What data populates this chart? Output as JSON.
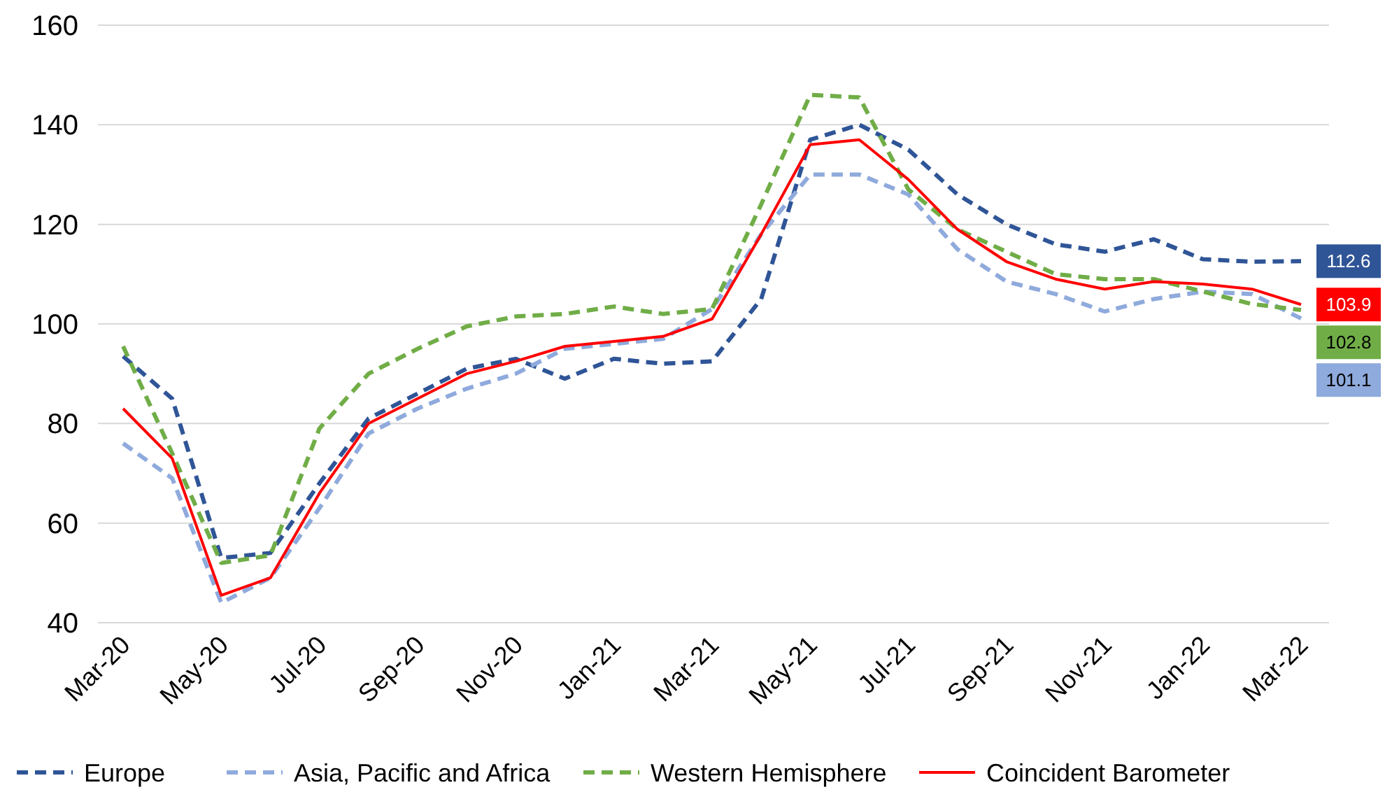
{
  "chart_data": {
    "type": "line",
    "categories": [
      "Mar-20",
      null,
      "May-20",
      null,
      "Jul-20",
      null,
      "Sep-20",
      null,
      "Nov-20",
      null,
      "Jan-21",
      null,
      "Mar-21",
      null,
      "May-21",
      null,
      "Jul-21",
      null,
      "Sep-21",
      null,
      "Nov-21",
      null,
      "Jan-22",
      null,
      "Mar-22"
    ],
    "ylim": [
      40,
      160
    ],
    "yticks": [
      40,
      60,
      80,
      100,
      120,
      140,
      160
    ],
    "grid": "y",
    "legend": "bottom",
    "series": [
      {
        "name": "Europe",
        "color": "#2f5597",
        "line_style": "dashed",
        "values": [
          93.5,
          85,
          53,
          54,
          68,
          81,
          86,
          91,
          93,
          89,
          93,
          92,
          92.5,
          105,
          137,
          140,
          135,
          126,
          120,
          116,
          114.5,
          117,
          113,
          112.5,
          112.6
        ],
        "value_labels": [
          null,
          null,
          null,
          null,
          null,
          null,
          null,
          null,
          null,
          null,
          null,
          null,
          null,
          null,
          null,
          null,
          null,
          null,
          null,
          null,
          null,
          null,
          null,
          null,
          "112.6"
        ]
      },
      {
        "name": "Asia, Pacific and Africa",
        "color": "#8faadc",
        "line_style": "dashed",
        "values": [
          76,
          69,
          44,
          49,
          63,
          78,
          83,
          87,
          90,
          95,
          96,
          97,
          103,
          118,
          130,
          130,
          126,
          115,
          108.5,
          106,
          102.5,
          105,
          106.5,
          106,
          101.1
        ],
        "value_labels": [
          null,
          null,
          null,
          null,
          null,
          null,
          null,
          null,
          null,
          null,
          null,
          null,
          null,
          null,
          null,
          null,
          null,
          null,
          null,
          null,
          null,
          null,
          null,
          null,
          "101.1"
        ]
      },
      {
        "name": "Western Hemisphere",
        "color": "#70ad47",
        "line_style": "dashed",
        "values": [
          95.5,
          74,
          52,
          53.5,
          79,
          90,
          95,
          99.5,
          101.5,
          102,
          103.5,
          102,
          103,
          124,
          146,
          145.5,
          127,
          119,
          114.5,
          110,
          109,
          109,
          106.5,
          104,
          102.8
        ],
        "value_labels": [
          null,
          null,
          null,
          null,
          null,
          null,
          null,
          null,
          null,
          null,
          null,
          null,
          null,
          null,
          null,
          null,
          null,
          null,
          null,
          null,
          null,
          null,
          null,
          null,
          "102.8"
        ]
      },
      {
        "name": "Coincident Barometer",
        "color": "#ff0000",
        "line_style": "solid",
        "values": [
          83,
          73,
          45.5,
          49,
          66,
          80,
          85,
          90,
          92.5,
          95.5,
          96.5,
          97.5,
          101,
          118,
          136,
          137,
          129,
          119,
          112.5,
          109,
          107,
          108.5,
          108,
          107,
          103.9
        ],
        "value_labels": [
          null,
          null,
          null,
          null,
          null,
          null,
          null,
          null,
          null,
          null,
          null,
          null,
          null,
          null,
          null,
          null,
          null,
          null,
          null,
          null,
          null,
          null,
          null,
          null,
          "103.9"
        ]
      }
    ]
  }
}
